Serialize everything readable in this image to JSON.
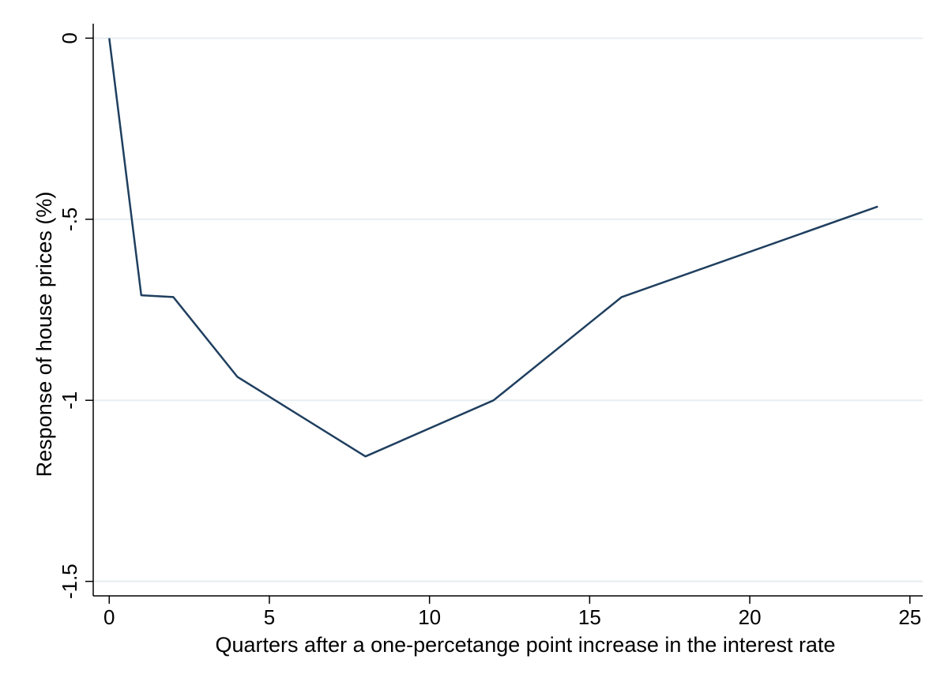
{
  "chart_data": {
    "type": "line",
    "title": "",
    "xlabel": "Quarters after a one-percetange point increase in the interest rate",
    "ylabel": "Response of house prices (%)",
    "xlim": [
      -0.5,
      25.4
    ],
    "ylim": [
      -1.54,
      0.04
    ],
    "xticks": [
      0,
      5,
      10,
      15,
      20,
      25
    ],
    "xtick_labels": [
      "0",
      "5",
      "10",
      "15",
      "20",
      "25"
    ],
    "yticks": [
      0,
      -0.5,
      -1,
      -1.5
    ],
    "ytick_labels": [
      "0",
      "-.5",
      "-1",
      "-1.5"
    ],
    "grid": "horizontal",
    "legend": "none",
    "series": [
      {
        "color": "#1f3f5f",
        "x": [
          0,
          1,
          2,
          4,
          8,
          12,
          16,
          24
        ],
        "y": [
          0,
          -0.71,
          -0.715,
          -0.935,
          -1.155,
          -1.0,
          -0.715,
          -0.465
        ]
      }
    ]
  }
}
